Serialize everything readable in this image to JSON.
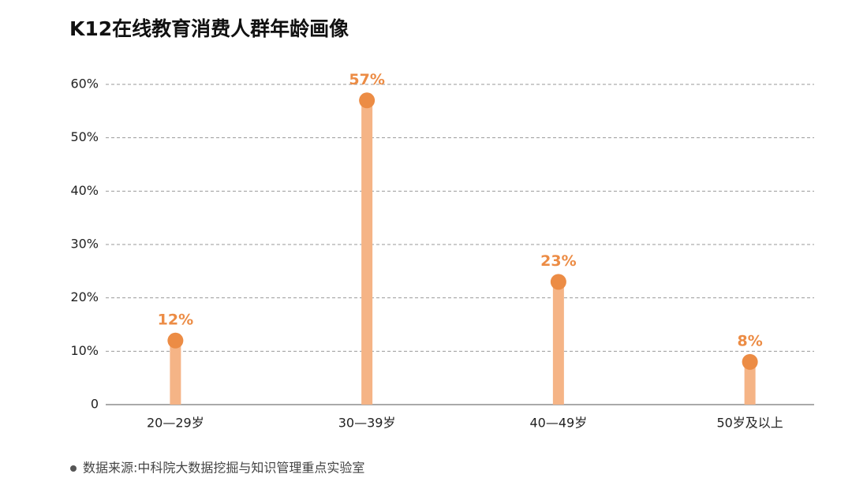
{
  "chart_data": {
    "type": "lollipop",
    "title": "K12在线教育消费人群年龄画像",
    "categories": [
      "20—29岁",
      "30—39岁",
      "40—49岁",
      "50岁及以上"
    ],
    "values": [
      12,
      57,
      23,
      8
    ],
    "value_labels": [
      "12%",
      "57%",
      "23%",
      "8%"
    ],
    "stem_color": "#f5b486",
    "color": "#ec8c45",
    "ylim": [
      0,
      60
    ],
    "yticks": [
      0,
      {
        "value": 10,
        "label": "10%"
      },
      {
        "value": 20,
        "label": "20%"
      },
      {
        "value": 30,
        "label": "30%"
      },
      {
        "value": 40,
        "label": "40%"
      },
      {
        "value": 50,
        "label": "50%"
      },
      {
        "value": 60,
        "label": "60%"
      }
    ],
    "grid": true,
    "source": "数据来源:中科院大数据挖掘与知识管理重点实验室"
  }
}
